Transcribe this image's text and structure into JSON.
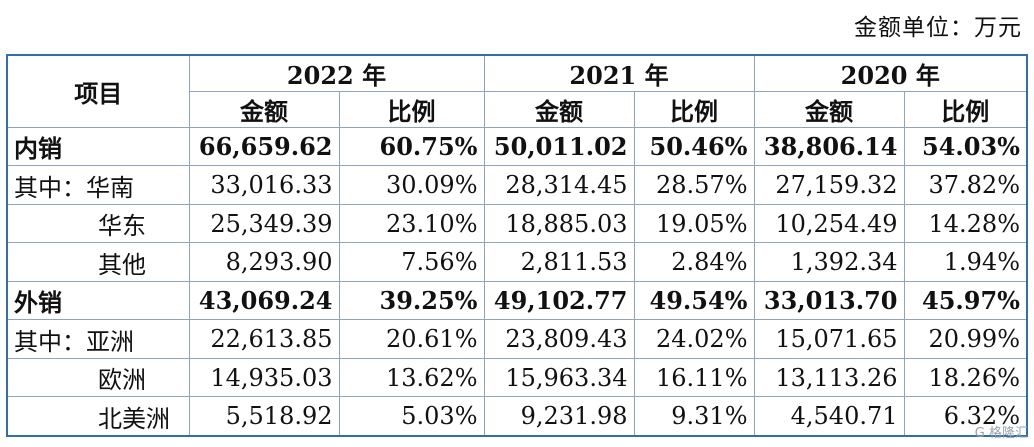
{
  "unit": "金额单位：万元",
  "header": {
    "item": "项目",
    "years": [
      "2022 年",
      "2021 年",
      "2020 年"
    ],
    "amount": "金额",
    "ratio": "比例"
  },
  "rows": [
    {
      "label": "内销",
      "bold": true,
      "indent": false,
      "v": [
        "66,659.62",
        "60.75%",
        "50,011.02",
        "50.46%",
        "38,806.14",
        "54.03%"
      ]
    },
    {
      "label": "其中：华南",
      "bold": false,
      "indent": false,
      "v": [
        "33,016.33",
        "30.09%",
        "28,314.45",
        "28.57%",
        "27,159.32",
        "37.82%"
      ]
    },
    {
      "label": "华东",
      "bold": false,
      "indent": true,
      "v": [
        "25,349.39",
        "23.10%",
        "18,885.03",
        "19.05%",
        "10,254.49",
        "14.28%"
      ]
    },
    {
      "label": "其他",
      "bold": false,
      "indent": true,
      "v": [
        "8,293.90",
        "7.56%",
        "2,811.53",
        "2.84%",
        "1,392.34",
        "1.94%"
      ]
    },
    {
      "label": "外销",
      "bold": true,
      "indent": false,
      "v": [
        "43,069.24",
        "39.25%",
        "49,102.77",
        "49.54%",
        "33,013.70",
        "45.97%"
      ]
    },
    {
      "label": "其中：亚洲",
      "bold": false,
      "indent": false,
      "v": [
        "22,613.85",
        "20.61%",
        "23,809.43",
        "24.02%",
        "15,071.65",
        "20.99%"
      ]
    },
    {
      "label": "欧洲",
      "bold": false,
      "indent": true,
      "v": [
        "14,935.03",
        "13.62%",
        "15,963.34",
        "16.11%",
        "13,113.26",
        "18.26%"
      ]
    },
    {
      "label": "北美洲",
      "bold": false,
      "indent": true,
      "v": [
        "5,518.92",
        "5.03%",
        "9,231.98",
        "9.31%",
        "4,540.71",
        "6.32%"
      ]
    }
  ],
  "watermark": "格隆汇"
}
